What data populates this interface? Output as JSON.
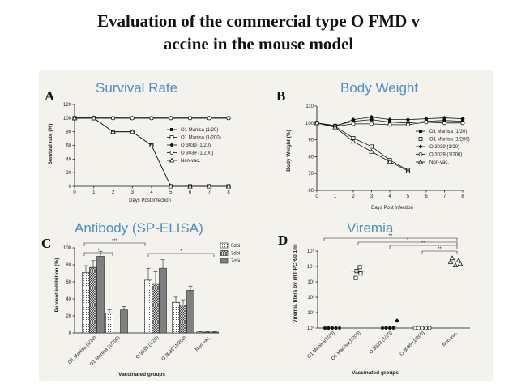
{
  "slide": {
    "title_line1": "Evaluation of the commercial type O FMD v",
    "title_line2": "accine in the mouse model"
  },
  "panels": {
    "a": {
      "letter": "A",
      "title": "Survival Rate",
      "ylabel": "Survival rate (%)",
      "xlabel": "Days Post Infection"
    },
    "b": {
      "letter": "B",
      "title": "Body Weight",
      "ylabel": "Body Weight (%)",
      "xlabel": "Days Post Infection"
    },
    "c": {
      "letter": "C",
      "title": "Antibody (SP-ELISA)",
      "ylabel": "Percent inhibition (%)",
      "xlabel": "Vaccinated groups"
    },
    "d": {
      "letter": "D",
      "title": "Viremia",
      "ylabel": "Viremia titers by rRT-PCR/0.1ml",
      "xlabel": "Vaccinated groups"
    }
  },
  "chart_data": [
    {
      "id": "survival",
      "type": "line",
      "title": "Survival Rate",
      "xlabel": "Days Post Infection",
      "ylabel": "Survival rate (%)",
      "x": [
        0,
        1,
        2,
        3,
        4,
        5,
        6,
        7,
        8
      ],
      "xlim": [
        0,
        8
      ],
      "ylim": [
        0,
        120
      ],
      "yticks": [
        0,
        20,
        40,
        60,
        80,
        100,
        120
      ],
      "series": [
        {
          "name": "O1 Manisa (1/20)",
          "marker": "filled-square",
          "values": [
            100,
            100,
            100,
            100,
            100,
            100,
            100,
            100,
            100
          ]
        },
        {
          "name": "O1 Manisa (1/200)",
          "marker": "open-square",
          "values": [
            100,
            100,
            80,
            80,
            60,
            0,
            0,
            0,
            0
          ]
        },
        {
          "name": "O 3039 (1/20)",
          "marker": "filled-diamond",
          "values": [
            100,
            100,
            100,
            100,
            100,
            100,
            100,
            100,
            100
          ]
        },
        {
          "name": "O 3039 (1/200)",
          "marker": "open-circle",
          "values": [
            100,
            100,
            100,
            100,
            100,
            100,
            100,
            100,
            100
          ]
        },
        {
          "name": "Non-vac.",
          "marker": "open-triangle",
          "values": [
            100,
            100,
            80,
            80,
            60,
            0,
            0,
            0,
            0
          ]
        }
      ],
      "legend": "right"
    },
    {
      "id": "bodyweight",
      "type": "line",
      "title": "Body Weight",
      "xlabel": "Days Post Infection",
      "ylabel": "Body Weight (%)",
      "x": [
        0,
        1,
        2,
        3,
        4,
        5,
        6,
        7,
        8
      ],
      "xlim": [
        0,
        8
      ],
      "ylim": [
        60,
        110
      ],
      "yticks": [
        60,
        70,
        80,
        90,
        100,
        110
      ],
      "series": [
        {
          "name": "O1 Manisa (1/20)",
          "marker": "filled-square",
          "values": [
            100,
            98.5,
            101,
            102,
            100.5,
            100,
            101,
            101.5,
            101
          ]
        },
        {
          "name": "O1 Manisa (1/200)",
          "marker": "open-square",
          "values": [
            100,
            98,
            91,
            86,
            78,
            72,
            null,
            null,
            null
          ]
        },
        {
          "name": "O 3039 (1/20)",
          "marker": "filled-diamond",
          "values": [
            100,
            98,
            102,
            103.5,
            102,
            102,
            102.5,
            103,
            102.5
          ]
        },
        {
          "name": "O 3039 (1/200)",
          "marker": "open-circle",
          "values": [
            100,
            98,
            99.5,
            99.5,
            99,
            99,
            100.5,
            100,
            100
          ]
        },
        {
          "name": "Non-vac.",
          "marker": "open-triangle",
          "values": [
            100,
            97.5,
            89,
            83,
            77,
            71.5,
            null,
            null,
            null
          ]
        }
      ],
      "legend": "right"
    },
    {
      "id": "antibody",
      "type": "bar",
      "title": "Antibody (SP-ELISA)",
      "xlabel": "Vaccinated groups",
      "ylabel": "Percent inhibition (%)",
      "categories": [
        "O1 Manisa (1/20)",
        "O1 Manisa (1/200)",
        "O 3039 (1/20)",
        "O 3039 (1/200)",
        "Non-vac."
      ],
      "ylim": [
        0,
        100
      ],
      "yticks": [
        0,
        20,
        40,
        60,
        80,
        100
      ],
      "series": [
        {
          "name": "0dpi",
          "values": [
            71,
            23,
            62,
            36,
            1
          ],
          "errors": [
            8,
            4,
            14,
            6,
            0.5
          ]
        },
        {
          "name": "3dpi",
          "values": [
            77,
            null,
            58,
            33,
            1
          ],
          "errors": [
            8,
            null,
            14,
            6,
            0.5
          ]
        },
        {
          "name": "7dpi",
          "values": [
            90,
            27,
            76,
            50,
            1
          ],
          "errors": [
            6,
            4,
            10,
            5,
            0.5
          ]
        }
      ],
      "annotations": [
        "*",
        "***",
        "*"
      ],
      "legend": "top-right"
    },
    {
      "id": "viremia",
      "type": "scatter",
      "title": "Viremia",
      "xlabel": "Vaccinated groups",
      "ylabel": "Viremia titers by rRT-PCR/0.1ml",
      "categories": [
        "O1 Manisa(1/20)",
        "O1 Manisa(1/200)",
        "O 3039 (1/20)",
        "O 3039 (1/200)",
        "Non-vac."
      ],
      "yscale": "log",
      "ylim": [
        1,
        100000
      ],
      "ytick_labels": [
        "10⁰",
        "10¹",
        "10²",
        "10³",
        "10⁴",
        "10⁵"
      ],
      "groups": [
        {
          "name": "O1 Manisa(1/20)",
          "marker": "filled-circle",
          "values": [
            1,
            1,
            1,
            1,
            1
          ],
          "mean": null
        },
        {
          "name": "O1 Manisa(1/200)",
          "marker": "open-square",
          "values": [
            9000,
            5000,
            3500,
            1800
          ],
          "mean": 5000
        },
        {
          "name": "O 3039 (1/20)",
          "marker": "filled-diamond",
          "values": [
            1,
            1,
            1,
            1,
            3
          ],
          "mean": 1.3
        },
        {
          "name": "O 3039 (1/200)",
          "marker": "open-circle",
          "values": [
            1,
            1,
            1,
            1,
            1
          ],
          "mean": null
        },
        {
          "name": "Non-vac.",
          "marker": "open-triangle",
          "values": [
            35000,
            25000,
            20000,
            15000,
            12000
          ],
          "mean": 20000
        }
      ],
      "annotations": [
        "**",
        "*",
        "**",
        "**"
      ]
    }
  ]
}
